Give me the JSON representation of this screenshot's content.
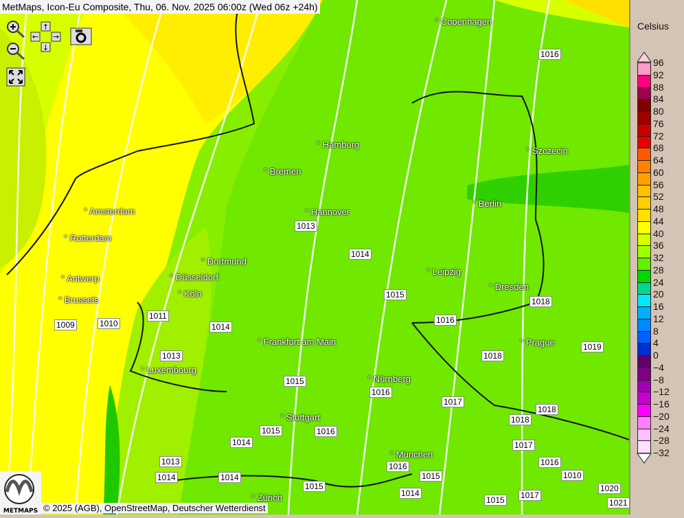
{
  "title": "MetMaps, Icon-Eu Composite, Thu, 06. Nov. 2025 06:00z (Wed 06z +24h)",
  "controls": {
    "zoom_in": "zoom-in-icon",
    "zoom_out": "zoom-out-icon",
    "pan": "pan-arrows-icon",
    "screenshot": "camera-icon",
    "fullscreen": "fullscreen-icon"
  },
  "cities": [
    "Copenhagen",
    "Hamburg",
    "Szczecin",
    "Bremen",
    "Berlin",
    "Amsterdam",
    "Hannover",
    "Rotterdam",
    "Dortmund",
    "Leipzig",
    "Antwerp",
    "Düsseldorf",
    "Dresden",
    "Brussels",
    "Köln",
    "Frankfurt am Main",
    "Prague",
    "Luxembourg",
    "Nürnberg",
    "Stuttgart",
    "München",
    "Zürich"
  ],
  "isobars": [
    "1016",
    "1013",
    "1014",
    "1015",
    "1016",
    "1018",
    "1009",
    "1010",
    "1011",
    "1014",
    "1018",
    "1019",
    "1013",
    "1015",
    "1016",
    "1017",
    "1018",
    "1018",
    "1015",
    "1014",
    "1016",
    "1017",
    "1016",
    "1013",
    "1014",
    "1014",
    "1016",
    "1015",
    "1010",
    "1014",
    "1015",
    "1017",
    "1020",
    "1021",
    "1015"
  ],
  "legend": {
    "unit": "Celsius",
    "labels": [
      "96",
      "92",
      "88",
      "84",
      "80",
      "76",
      "72",
      "68",
      "64",
      "60",
      "56",
      "52",
      "48",
      "44",
      "40",
      "36",
      "32",
      "28",
      "24",
      "20",
      "16",
      "12",
      "8",
      "4",
      "0",
      "−4",
      "−8",
      "−12",
      "−16",
      "−20",
      "−24",
      "−28",
      "−32"
    ],
    "colors": [
      "#ff99c8",
      "#ff0080",
      "#a0004c",
      "#800000",
      "#a00000",
      "#c80000",
      "#e80000",
      "#ff5a00",
      "#ff8000",
      "#ffa000",
      "#ffc000",
      "#ffd000",
      "#ffe000",
      "#ffff00",
      "#d4ff00",
      "#a0ff00",
      "#60f000",
      "#00d800",
      "#00d890",
      "#00e8ff",
      "#00b0ff",
      "#0088ff",
      "#0060ff",
      "#0030d0",
      "#600068",
      "#800088",
      "#a000b0",
      "#c800d0",
      "#ff00ff",
      "#ff80ff",
      "#ffc0ff",
      "#ffe0ff"
    ],
    "top_arrow_color": "#ffccdd",
    "bottom_arrow_color": "#ffffff"
  },
  "credit": "© 2025 (AGB), OpenStreetMap, Deutscher Wetterdienst",
  "logo_text": "METMAPS"
}
